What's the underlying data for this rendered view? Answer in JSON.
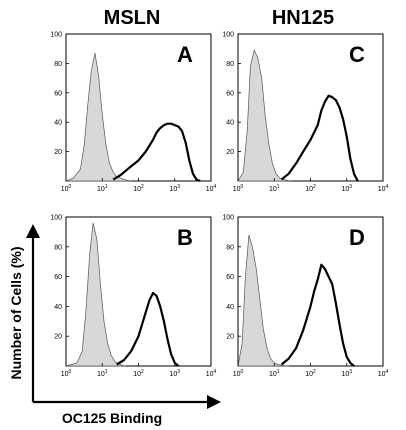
{
  "figure": {
    "column_titles": [
      "MSLN",
      "HN125"
    ],
    "y_axis_title": "Number of Cells (%)",
    "x_axis_title": "OC125 Binding"
  },
  "chart_data": [
    {
      "type": "area",
      "panel_label": "A",
      "x_scale": "log",
      "xlim": [
        1,
        10000
      ],
      "ylim": [
        0,
        100
      ],
      "y_ticks": [
        20,
        40,
        60,
        80,
        100
      ],
      "x_tick_labels": [
        "10",
        "10",
        "10",
        "10",
        "10"
      ],
      "x_tick_exponents": [
        "0",
        "1",
        "2",
        "3",
        "4"
      ],
      "grid": false,
      "series": [
        {
          "x": [
            1,
            1.6,
            2.5,
            3.2,
            4,
            5,
            6.3,
            7.9,
            10,
            12.6,
            15.8,
            20,
            25,
            32,
            40,
            50,
            63
          ],
          "values": [
            0,
            2,
            8,
            25,
            52,
            75,
            87,
            72,
            45,
            25,
            12,
            6,
            3,
            2,
            1,
            0.5,
            0
          ],
          "fill": "#d8d8d8"
        },
        {
          "x": [
            20,
            32,
            50,
            79,
            100,
            158,
            200,
            251,
            316,
            398,
            501,
            631,
            794,
            1000,
            1259,
            1585,
            2000,
            2512,
            3162,
            3981,
            5012
          ],
          "values": [
            1,
            4,
            8,
            12,
            14,
            20,
            24,
            28,
            33,
            36,
            38,
            39,
            39,
            38,
            37,
            34,
            26,
            14,
            5,
            1,
            0
          ]
        }
      ]
    },
    {
      "type": "area",
      "panel_label": "C",
      "x_scale": "log",
      "xlim": [
        1,
        10000
      ],
      "ylim": [
        0,
        100
      ],
      "y_ticks": [
        20,
        40,
        60,
        80,
        100
      ],
      "x_tick_labels": [
        "10",
        "10",
        "10",
        "10",
        "10"
      ],
      "x_tick_exponents": [
        "0",
        "1",
        "2",
        "3",
        "4"
      ],
      "grid": false,
      "series": [
        {
          "x": [
            1,
            1.4,
            1.8,
            2.2,
            2.8,
            3.5,
            4.5,
            5.6,
            7.1,
            8.9,
            11.2,
            14.1,
            17.8,
            22.4,
            28.2
          ],
          "values": [
            0,
            6,
            35,
            78,
            89,
            84,
            70,
            45,
            25,
            12,
            5,
            2,
            1,
            0.5,
            0
          ],
          "fill": "#d8d8d8"
        },
        {
          "x": [
            15.8,
            25,
            40,
            63,
            100,
            158,
            200,
            251,
            316,
            398,
            501,
            631,
            794,
            1000,
            1259,
            1585,
            2000
          ],
          "values": [
            1,
            5,
            12,
            20,
            28,
            38,
            48,
            54,
            58,
            57,
            55,
            50,
            42,
            30,
            15,
            5,
            0
          ]
        }
      ]
    },
    {
      "type": "area",
      "panel_label": "B",
      "x_scale": "log",
      "xlim": [
        1,
        10000
      ],
      "ylim": [
        0,
        100
      ],
      "y_ticks": [
        20,
        40,
        60,
        80,
        100
      ],
      "x_tick_labels": [
        "10",
        "10",
        "10",
        "10",
        "10"
      ],
      "x_tick_exponents": [
        "0",
        "1",
        "2",
        "3",
        "4"
      ],
      "grid": false,
      "series": [
        {
          "x": [
            1,
            2,
            2.8,
            3.5,
            4.5,
            5.6,
            7.1,
            8.9,
            11.2,
            14.1,
            17.8,
            22.4,
            28.2,
            35.5,
            44.7
          ],
          "values": [
            0,
            2,
            10,
            35,
            75,
            96,
            85,
            55,
            30,
            15,
            7,
            3,
            1.5,
            0.5,
            0
          ],
          "fill": "#d8d8d8"
        },
        {
          "x": [
            25,
            40,
            63,
            100,
            126,
            158,
            200,
            251,
            316,
            398,
            501,
            631,
            794,
            1000,
            1259
          ],
          "values": [
            1,
            4,
            10,
            20,
            28,
            36,
            44,
            49,
            47,
            40,
            30,
            18,
            8,
            2,
            0
          ]
        }
      ]
    },
    {
      "type": "area",
      "panel_label": "D",
      "x_scale": "log",
      "xlim": [
        1,
        10000
      ],
      "ylim": [
        0,
        100
      ],
      "y_ticks": [
        20,
        40,
        60,
        80,
        100
      ],
      "x_tick_labels": [
        "10",
        "10",
        "10",
        "10",
        "10"
      ],
      "x_tick_exponents": [
        "0",
        "1",
        "2",
        "3",
        "4"
      ],
      "grid": false,
      "series": [
        {
          "x": [
            1,
            1.3,
            1.6,
            2,
            2.5,
            3.2,
            4,
            5,
            6.3,
            7.9,
            10,
            12.6,
            15.8,
            20,
            25
          ],
          "values": [
            0,
            15,
            60,
            88,
            80,
            65,
            45,
            25,
            12,
            5,
            2,
            1,
            0.5,
            0.2,
            0
          ],
          "fill": "#d8d8d8"
        },
        {
          "x": [
            15.8,
            25,
            40,
            63,
            100,
            126,
            158,
            200,
            251,
            316,
            398,
            501,
            631,
            794,
            1000,
            1259,
            1585
          ],
          "values": [
            1,
            5,
            12,
            24,
            40,
            50,
            58,
            68,
            65,
            60,
            55,
            42,
            28,
            15,
            6,
            2,
            0
          ]
        }
      ]
    }
  ]
}
